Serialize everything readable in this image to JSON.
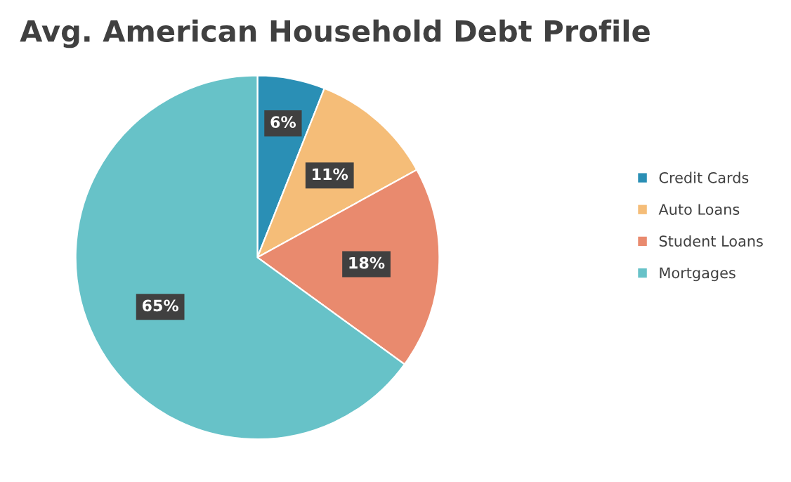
{
  "chart_data": {
    "type": "pie",
    "title": "Avg. American Household Debt Profile",
    "categories": [
      "Credit Cards",
      "Auto Loans",
      "Student Loans",
      "Mortgages"
    ],
    "values": [
      6,
      11,
      18,
      65
    ],
    "colors": [
      "#2a8fb5",
      "#f5bd78",
      "#e98a6e",
      "#67c2c8"
    ],
    "value_labels": [
      "6%",
      "11%",
      "18%",
      "65%"
    ],
    "legend": "right"
  }
}
